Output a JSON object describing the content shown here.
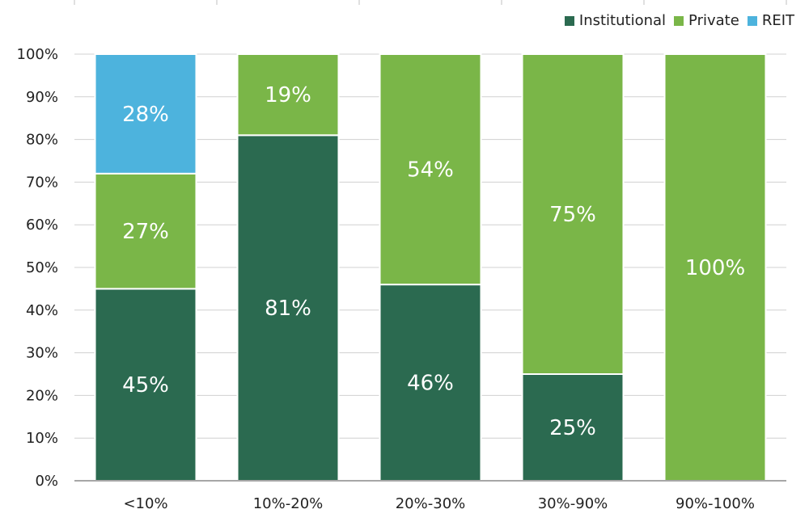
{
  "chart_data": {
    "type": "bar",
    "stacked": true,
    "categories": [
      "<10%",
      "10%-20%",
      "20%-30%",
      "30%-90%",
      "90%-100%"
    ],
    "series": [
      {
        "name": "Institutional",
        "color": "#2b6a50",
        "values": [
          45,
          81,
          46,
          25,
          0
        ],
        "labels": [
          "45%",
          "81%",
          "46%",
          "25%",
          ""
        ]
      },
      {
        "name": "Private",
        "color": "#7ab648",
        "values": [
          27,
          19,
          54,
          75,
          100
        ],
        "labels": [
          "27%",
          "19%",
          "54%",
          "75%",
          "100%"
        ]
      },
      {
        "name": "REIT",
        "color": "#4db3dd",
        "values": [
          28,
          0,
          0,
          0,
          0
        ],
        "labels": [
          "28%",
          "",
          "",
          "",
          ""
        ]
      }
    ],
    "y_ticks": [
      "0%",
      "10%",
      "20%",
      "30%",
      "40%",
      "50%",
      "60%",
      "70%",
      "80%",
      "90%",
      "100%"
    ],
    "ylim": [
      0,
      100
    ],
    "grid": true,
    "legend_position": "top-right",
    "title": "",
    "xlabel": "",
    "ylabel": ""
  }
}
